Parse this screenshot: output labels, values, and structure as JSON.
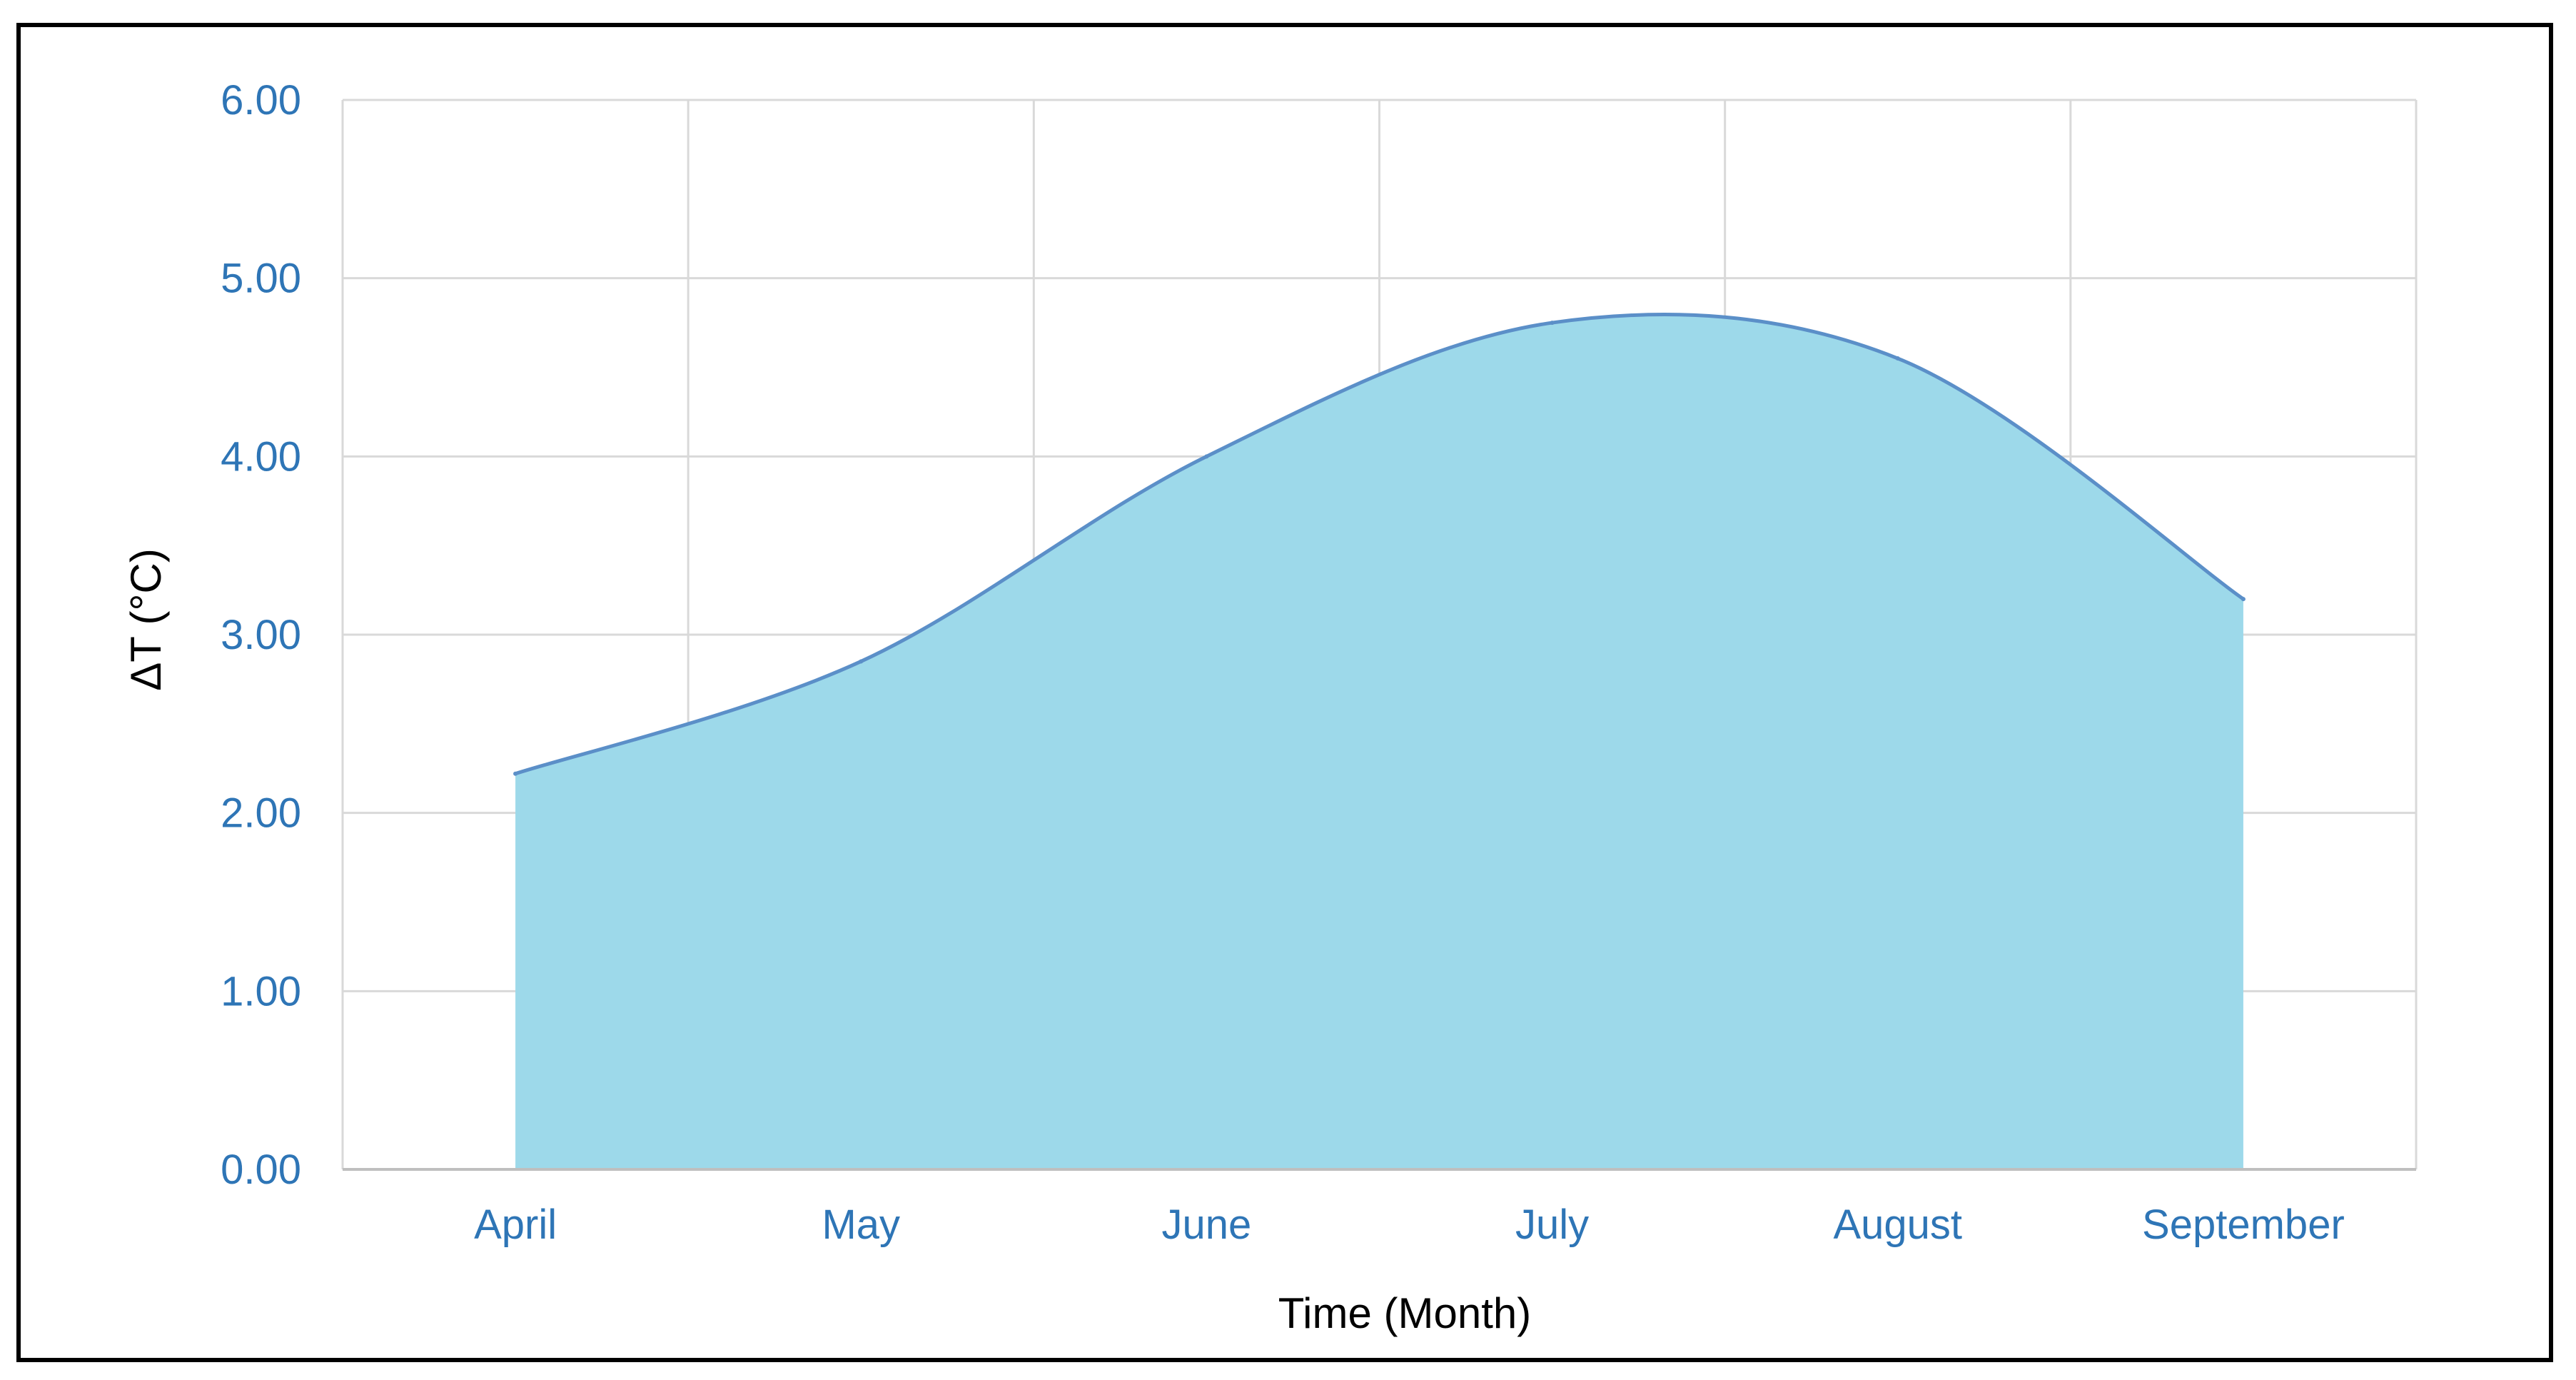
{
  "chart_data": {
    "type": "area",
    "title": "",
    "xlabel": "Time (Month)",
    "ylabel": "ΔT (°C)",
    "categories": [
      "April",
      "May",
      "June",
      "July",
      "August",
      "September"
    ],
    "values": [
      2.22,
      2.85,
      4.0,
      4.75,
      4.55,
      3.2
    ],
    "ylim": [
      0,
      6
    ],
    "yticks": [
      "0.00",
      "1.00",
      "2.00",
      "3.00",
      "4.00",
      "5.00",
      "6.00"
    ],
    "grid": true,
    "legend": "none"
  },
  "colors": {
    "fill": "#9dd9ea",
    "line": "#5b8fc8",
    "tick_label": "#2e75b6",
    "grid": "#d9d9d9",
    "axis": "#bfbfbf"
  }
}
